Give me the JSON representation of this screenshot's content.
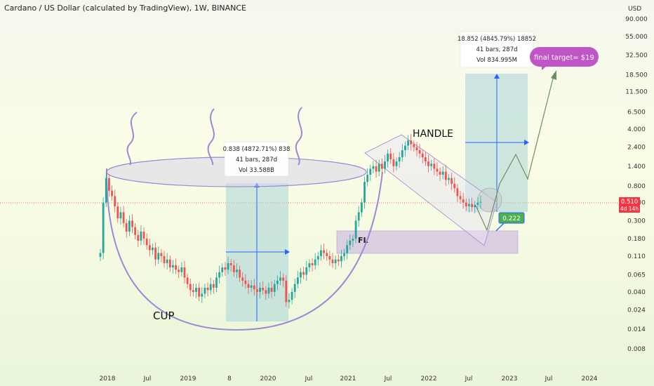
{
  "header": {
    "title": "Cardano / US Dollar (calculated by TradingView), 1W, BINANCE"
  },
  "colors": {
    "up_candle": "#26a69a",
    "down_candle": "#ef5350",
    "cup_outline": "#9c88d4",
    "measure_box": "#a7d4d8",
    "measure_arrow": "#2962ff",
    "price_tag": "#f23645",
    "target_bubble": "#c055c7",
    "small_tag": "#4caf50",
    "projection_line": "#6b8f60"
  },
  "chart_data": {
    "type": "candlestick",
    "symbol": "ADAUSD",
    "timeframe": "1W",
    "exchange": "BINANCE",
    "y_scale": "log",
    "ylim": [
      0.008,
      90
    ],
    "y_axis_unit": "USD",
    "y_ticks": [
      90.0,
      55.0,
      32.5,
      18.5,
      11.5,
      6.5,
      4.0,
      2.4,
      1.4,
      0.8,
      0.5,
      0.3,
      0.18,
      0.11,
      0.065,
      0.04,
      0.024,
      0.014,
      0.008
    ],
    "y_tick_labels": [
      "90.000",
      "55.000",
      "32.500",
      "18.500",
      "11.500",
      "6.500",
      "4.000",
      "2.400",
      "1.400",
      "0.800",
      "0.500",
      "0.300",
      "0.180",
      "0.110",
      "0.065",
      "0.040",
      "0.024",
      "0.014",
      "0.008"
    ],
    "x_tick_labels": [
      "2018",
      "Jul",
      "2019",
      "8",
      "2020",
      "Jul",
      "2021",
      "Jul",
      "2022",
      "Jul",
      "2023",
      "Jul",
      "2024"
    ],
    "current_price": {
      "label": "0.510",
      "countdown": "4d 14h",
      "value": 0.51
    },
    "weekly_closes": [
      0.12,
      0.5,
      1.0,
      0.7,
      0.6,
      0.45,
      0.32,
      0.38,
      0.28,
      0.22,
      0.3,
      0.25,
      0.2,
      0.17,
      0.22,
      0.18,
      0.15,
      0.13,
      0.14,
      0.1,
      0.12,
      0.11,
      0.09,
      0.1,
      0.08,
      0.085,
      0.075,
      0.07,
      0.08,
      0.06,
      0.05,
      0.042,
      0.04,
      0.045,
      0.035,
      0.038,
      0.045,
      0.042,
      0.05,
      0.045,
      0.06,
      0.07,
      0.08,
      0.075,
      0.09,
      0.085,
      0.07,
      0.075,
      0.06,
      0.055,
      0.05,
      0.045,
      0.048,
      0.043,
      0.04,
      0.045,
      0.042,
      0.038,
      0.045,
      0.04,
      0.05,
      0.055,
      0.06,
      0.055,
      0.03,
      0.032,
      0.04,
      0.05,
      0.06,
      0.07,
      0.065,
      0.08,
      0.09,
      0.085,
      0.1,
      0.11,
      0.13,
      0.12,
      0.11,
      0.1,
      0.09,
      0.1,
      0.095,
      0.11,
      0.12,
      0.15,
      0.17,
      0.18,
      0.3,
      0.38,
      0.5,
      0.9,
      1.1,
      1.3,
      1.4,
      1.2,
      1.5,
      1.3,
      1.6,
      2.0,
      1.7,
      1.4,
      1.6,
      1.8,
      2.2,
      2.5,
      2.9,
      2.6,
      2.4,
      2.2,
      2.0,
      1.8,
      1.6,
      1.4,
      1.5,
      1.3,
      1.2,
      1.1,
      1.2,
      0.95,
      1.0,
      0.85,
      0.75,
      0.6,
      0.55,
      0.5,
      0.45,
      0.48,
      0.44,
      0.47,
      0.5,
      0.51
    ],
    "annotations": [
      {
        "type": "label",
        "text": "CUP"
      },
      {
        "type": "label",
        "text": "HANDLE"
      },
      {
        "type": "label",
        "text": "FL"
      },
      {
        "type": "measure",
        "line1": "0.838 (4872.71%) 838",
        "line2": "41 bars, 287d",
        "line3": "Vol 33.588B"
      },
      {
        "type": "measure",
        "line1": "18.852 (4845.79%) 18852",
        "line2": "41 bars, 287d",
        "line3": "Vol 834.995M"
      },
      {
        "type": "callout",
        "text": "final target= $19"
      },
      {
        "type": "tag",
        "text": "0.222"
      }
    ]
  }
}
